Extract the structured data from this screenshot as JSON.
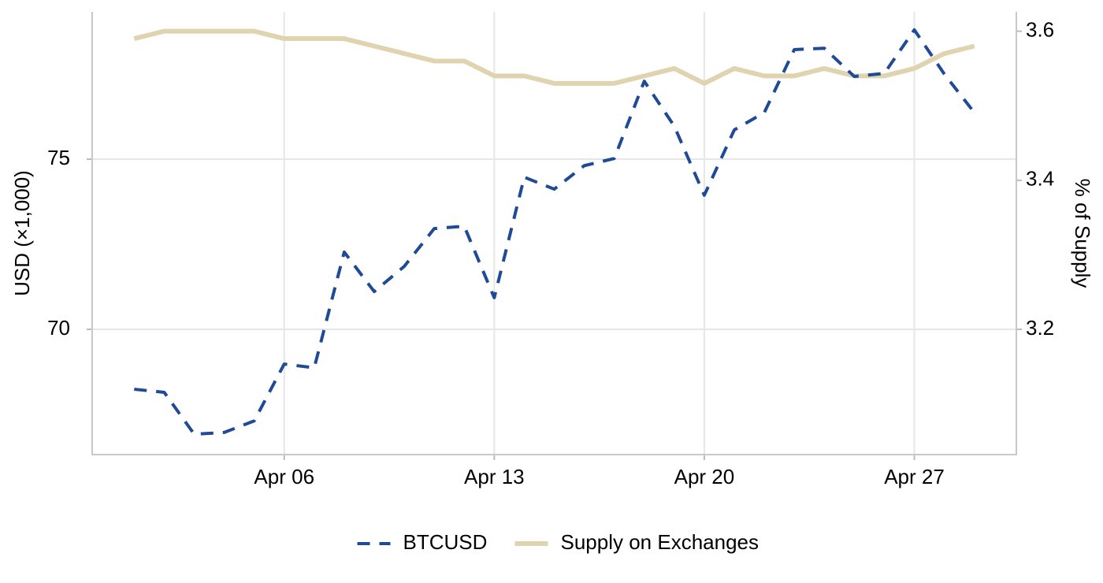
{
  "chart_data": {
    "type": "line",
    "x": [
      1,
      2,
      3,
      4,
      5,
      6,
      7,
      8,
      9,
      10,
      11,
      12,
      13,
      14,
      15,
      16,
      17,
      18,
      19,
      20,
      21,
      22,
      23,
      24,
      25,
      26,
      27,
      28,
      29
    ],
    "xlim": [
      -0.4,
      30.4
    ],
    "xticks": [
      {
        "value": 6,
        "label": "Apr 06"
      },
      {
        "value": 13,
        "label": "Apr 13"
      },
      {
        "value": 20,
        "label": "Apr 20"
      },
      {
        "value": 27,
        "label": "Apr 27"
      }
    ],
    "ylabel": "USD (×1,000)",
    "y2label": "% of Supply",
    "ylim": [
      66.32,
      79.33
    ],
    "yticks": [
      70,
      75
    ],
    "y2lim": [
      3.032,
      3.626
    ],
    "y2ticks": [
      3.2,
      3.4,
      3.6
    ],
    "grid": true,
    "legend": "bottom",
    "series": [
      {
        "name": "BTCUSD",
        "color": "#1f4a96",
        "dash": true,
        "values": [
          68.24,
          68.15,
          66.92,
          66.97,
          67.31,
          68.98,
          68.87,
          72.27,
          71.11,
          71.85,
          72.96,
          73.03,
          70.93,
          74.47,
          74.12,
          74.81,
          75.02,
          77.29,
          75.97,
          73.94,
          75.86,
          76.37,
          78.22,
          78.26,
          77.43,
          77.52,
          78.8,
          77.5,
          76.37
        ]
      },
      {
        "name": "Supply on Exchanges",
        "color": "#dfd3b0",
        "axis": "y2",
        "values": [
          3.59,
          3.6,
          3.6,
          3.6,
          3.6,
          3.59,
          3.59,
          3.59,
          3.58,
          3.57,
          3.56,
          3.56,
          3.54,
          3.54,
          3.53,
          3.53,
          3.53,
          3.54,
          3.55,
          3.53,
          3.55,
          3.54,
          3.54,
          3.55,
          3.54,
          3.54,
          3.55,
          3.57,
          3.58
        ]
      }
    ]
  }
}
